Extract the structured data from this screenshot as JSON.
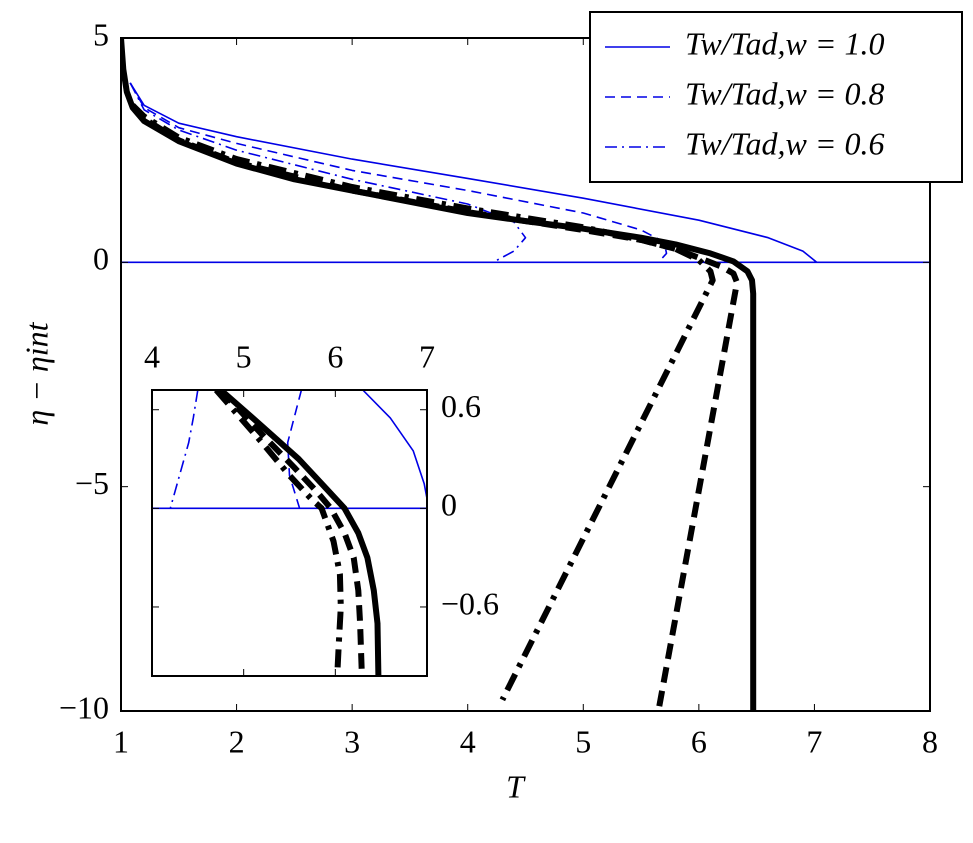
{
  "chart_data": [
    {
      "type": "line",
      "xlabel": "T",
      "ylabel": "η − ηint",
      "xlim": [
        1,
        8
      ],
      "ylim": [
        -10,
        5
      ],
      "xticks": [
        1,
        2,
        3,
        4,
        5,
        6,
        7,
        8
      ],
      "yticks": [
        {
          "value": -10,
          "label": "−10"
        },
        {
          "value": -5,
          "label": "−5"
        },
        0,
        5
      ],
      "legend": "upper right",
      "series": [
        {
          "name": "Tw/Tad,w = 1.0",
          "color": "#0000e6",
          "dash": "solid",
          "width": 1.6,
          "x": [
            1.08,
            1.2,
            1.5,
            2,
            3,
            4,
            5,
            6,
            6.6,
            6.9,
            7.02
          ],
          "values": [
            4.0,
            3.5,
            3.1,
            2.8,
            2.3,
            1.87,
            1.43,
            0.94,
            0.55,
            0.25,
            0
          ]
        },
        {
          "name": "Tw/Tad,w = 0.8",
          "color": "#0000e6",
          "dash": "dashed",
          "width": 1.6,
          "x": [
            1.08,
            1.2,
            1.5,
            2,
            3,
            4,
            5,
            5.5,
            5.7,
            5.72,
            5.65
          ],
          "values": [
            4.0,
            3.45,
            3.0,
            2.65,
            2.05,
            1.6,
            1.1,
            0.72,
            0.45,
            0.2,
            0
          ]
        },
        {
          "name": "Tw/Tad,w = 0.6",
          "color": "#0000e6",
          "dash": "dashdot",
          "width": 1.6,
          "x": [
            1.08,
            1.2,
            1.5,
            2,
            3,
            4,
            4.4,
            4.5,
            4.4,
            4.22
          ],
          "values": [
            4.0,
            3.4,
            2.95,
            2.5,
            1.85,
            1.3,
            0.9,
            0.55,
            0.25,
            0
          ]
        },
        {
          "color": "#0000e6",
          "dash": "solid",
          "width": 1.6,
          "x": [
            1,
            8
          ],
          "values": [
            0,
            0
          ]
        },
        {
          "color": "#000000",
          "dash": "solid",
          "width": 6,
          "x": [
            1,
            1.02,
            1.05,
            1.1,
            1.2,
            1.5,
            2,
            2.5,
            3,
            3.5,
            4,
            4.5,
            5,
            5.5,
            5.8,
            6.1,
            6.3,
            6.42,
            6.46,
            6.47,
            6.47
          ],
          "values": [
            5,
            4.3,
            3.8,
            3.45,
            3.15,
            2.7,
            2.2,
            1.85,
            1.6,
            1.35,
            1.1,
            0.92,
            0.75,
            0.55,
            0.4,
            0.2,
            0.02,
            -0.2,
            -0.4,
            -0.7,
            -10
          ]
        },
        {
          "color": "#000000",
          "dash": "dashed",
          "width": 6,
          "x": [
            1.1,
            1.2,
            1.5,
            2,
            3,
            4,
            5,
            5.5,
            5.8,
            6.0,
            6.2,
            6.3,
            6.33,
            5.65
          ],
          "values": [
            3.5,
            3.2,
            2.72,
            2.22,
            1.6,
            1.12,
            0.72,
            0.5,
            0.3,
            0.1,
            -0.1,
            -0.25,
            -0.45,
            -10
          ]
        },
        {
          "color": "#000000",
          "dash": "dashdot",
          "width": 6,
          "x": [
            1.1,
            1.2,
            1.5,
            2,
            3,
            4,
            5,
            5.5,
            5.8,
            6.0,
            6.1,
            6.12,
            4.3
          ],
          "values": [
            3.5,
            3.25,
            2.78,
            2.3,
            1.68,
            1.2,
            0.78,
            0.5,
            0.3,
            0.05,
            -0.2,
            -0.4,
            -9.75
          ]
        }
      ]
    },
    {
      "type": "line",
      "xlim": [
        4,
        7
      ],
      "ylim": [
        -1.02,
        0.72
      ],
      "xticks": [
        4,
        5,
        6,
        7
      ],
      "yticks": [
        {
          "value": -0.6,
          "label": "−0.6"
        },
        0,
        0.6
      ],
      "series": [
        {
          "color": "#0000e6",
          "dash": "solid",
          "width": 1.6,
          "x": [
            6.3,
            6.6,
            6.85,
            6.97,
            7.02
          ],
          "values": [
            0.72,
            0.55,
            0.35,
            0.15,
            0
          ]
        },
        {
          "color": "#0000e6",
          "dash": "dashed",
          "width": 1.6,
          "x": [
            5.63,
            5.55,
            5.48,
            5.5,
            5.61
          ],
          "values": [
            0.72,
            0.55,
            0.4,
            0.2,
            0
          ]
        },
        {
          "color": "#0000e6",
          "dash": "dashdot",
          "width": 1.6,
          "x": [
            4.5,
            4.45,
            4.4,
            4.3,
            4.2
          ],
          "values": [
            0.72,
            0.55,
            0.4,
            0.2,
            0
          ]
        },
        {
          "color": "#0000e6",
          "dash": "solid",
          "width": 1.6,
          "x": [
            4,
            7
          ],
          "values": [
            0,
            0
          ]
        },
        {
          "color": "#000000",
          "dash": "solid",
          "width": 6,
          "x": [
            4.75,
            5.2,
            5.6,
            5.9,
            6.1,
            6.25,
            6.35,
            6.42,
            6.46,
            6.47
          ],
          "values": [
            0.72,
            0.5,
            0.3,
            0.12,
            0,
            -0.15,
            -0.3,
            -0.5,
            -0.7,
            -1.02
          ]
        },
        {
          "color": "#000000",
          "dash": "dashed",
          "width": 6,
          "x": [
            4.75,
            5.2,
            5.55,
            5.8,
            5.95,
            6.1,
            6.2,
            6.25,
            6.27,
            6.29
          ],
          "values": [
            0.72,
            0.45,
            0.25,
            0.1,
            0,
            -0.15,
            -0.3,
            -0.5,
            -0.7,
            -1.02
          ]
        },
        {
          "color": "#000000",
          "dash": "dashdot",
          "width": 6,
          "x": [
            4.7,
            5.2,
            5.5,
            5.75,
            5.85,
            5.98,
            6.05,
            6.06,
            6.04,
            6.02
          ],
          "values": [
            0.72,
            0.4,
            0.2,
            0.05,
            0,
            -0.2,
            -0.4,
            -0.6,
            -0.8,
            -1.02
          ]
        }
      ]
    }
  ]
}
